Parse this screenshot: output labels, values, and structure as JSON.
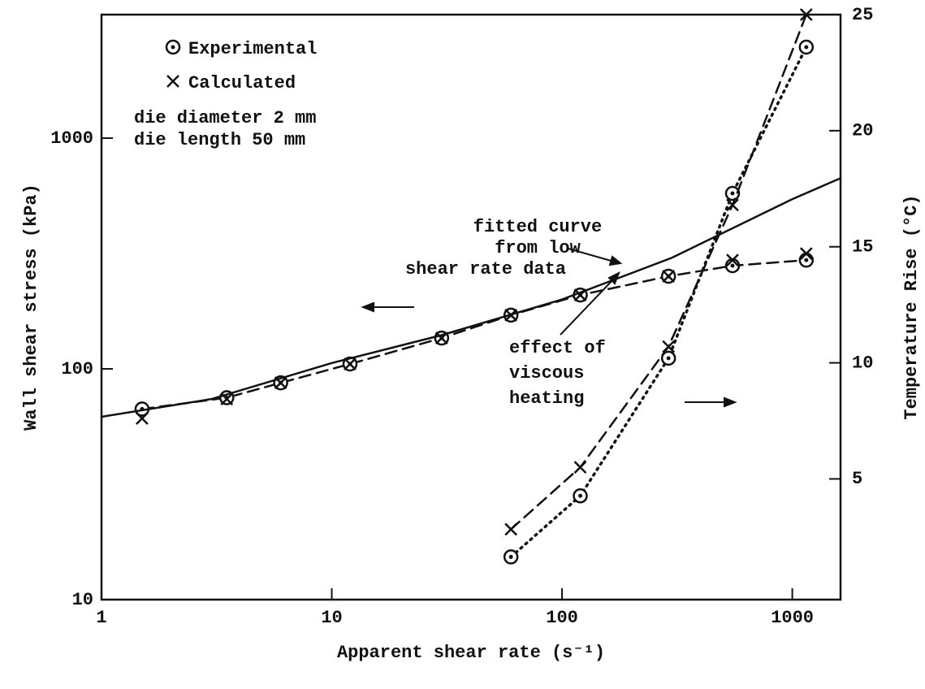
{
  "chart_data": {
    "type": "line",
    "xlabel": "Apparent shear rate (s⁻¹)",
    "ylabel": "Wall shear stress (kPa)",
    "y2label": "Temperature Rise (°C)",
    "xscale": "log",
    "yscale": "log",
    "xlim": [
      1,
      1620
    ],
    "ylim": [
      10,
      3430
    ],
    "y2lim": [
      -0.2,
      25
    ],
    "xticks": [
      1,
      10,
      100,
      1000
    ],
    "yticks": [
      10,
      100,
      1000
    ],
    "y2ticks": [
      5,
      10,
      15,
      20,
      25
    ],
    "legend_notes": [
      "die diameter 2 mm",
      "die length 50 mm"
    ],
    "annotations": [
      [
        "fitted curve",
        "from low",
        "shear rate data"
      ],
      [
        "effect of",
        "viscous",
        "heating"
      ]
    ],
    "series": [
      {
        "name": "Experimental",
        "marker": "circle-dot",
        "line": "dashed",
        "color": "#111",
        "x": [
          1.5,
          3.5,
          6,
          12,
          30,
          60,
          120,
          290,
          550,
          1150
        ],
        "values": [
          67,
          75,
          87,
          105,
          136,
          171,
          209,
          252,
          280,
          296
        ]
      },
      {
        "name": "Calculated",
        "marker": "x",
        "line": "none",
        "color": "#111",
        "x": [
          1.5,
          3.5,
          6,
          12,
          30,
          60,
          120,
          290,
          550,
          1150
        ],
        "values": [
          61,
          74,
          87,
          105,
          136,
          171,
          209,
          252,
          296,
          316
        ]
      },
      {
        "marker": "none",
        "line": "solid",
        "color": "#111",
        "x": [
          1,
          3,
          10,
          30,
          100,
          300,
          1000,
          1600
        ],
        "values": [
          62,
          74,
          106,
          140,
          200,
          303,
          544,
          667
        ]
      },
      {
        "name": "Experimental",
        "marker": "circle-dot",
        "line": "dotted",
        "color": "#111",
        "axis": "y2",
        "x": [
          60,
          120,
          290,
          550,
          1150
        ],
        "values": [
          1.64,
          4.27,
          10.2,
          17.3,
          23.6
        ]
      },
      {
        "name": "Calculated",
        "marker": "x",
        "line": "dashed",
        "color": "#111",
        "axis": "y2",
        "x": [
          60,
          120,
          290,
          550,
          1150
        ],
        "values": [
          2.83,
          5.5,
          10.7,
          16.8,
          25
        ]
      }
    ]
  }
}
